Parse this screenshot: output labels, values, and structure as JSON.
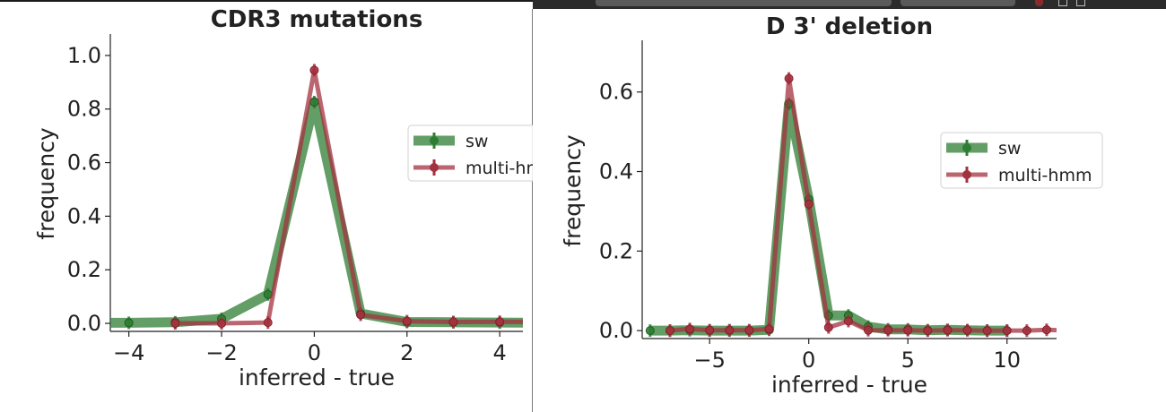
{
  "window": {
    "accent_color": "#8a2a2a"
  },
  "chart_data": [
    {
      "type": "line",
      "title": "CDR3 mutations",
      "xlabel": "inferred - true",
      "ylabel": "frequency",
      "xlim": [
        -4.4,
        4.5
      ],
      "ylim": [
        -0.03,
        1.08
      ],
      "x_ticks": [
        -4,
        -2,
        0,
        2,
        4
      ],
      "x_tick_labels": [
        "−4",
        "−2",
        "0",
        "2",
        "4"
      ],
      "y_ticks": [
        0.0,
        0.2,
        0.4,
        0.6,
        0.8,
        1.0
      ],
      "y_tick_labels": [
        "0.0",
        "0.2",
        "0.4",
        "0.6",
        "0.8",
        "1.0"
      ],
      "grid": false,
      "legend_position": "right",
      "series": [
        {
          "name": "sw",
          "color": "#2e7d32",
          "x": [
            -5,
            -4,
            -3,
            -2,
            -1,
            0,
            1,
            2,
            3,
            4,
            5
          ],
          "values": [
            0.002,
            0.002,
            0.004,
            0.017,
            0.108,
            0.826,
            0.037,
            0.005,
            0.004,
            0.003,
            0.002
          ]
        },
        {
          "name": "multi-hmm",
          "color": "#a3323f",
          "x": [
            -3,
            -2,
            -1,
            0,
            1,
            2,
            3,
            4,
            5
          ],
          "values": [
            0.0,
            0.0,
            0.003,
            0.945,
            0.032,
            0.008,
            0.005,
            0.006,
            0.005
          ]
        }
      ]
    },
    {
      "type": "line",
      "title": "D 3' deletion",
      "xlabel": "inferred - true",
      "ylabel": "frequency",
      "xlim": [
        -8.4,
        12.5
      ],
      "ylim": [
        -0.02,
        0.73
      ],
      "x_ticks": [
        -5,
        0,
        5,
        10
      ],
      "x_tick_labels": [
        "−5",
        "0",
        "5",
        "10"
      ],
      "y_ticks": [
        0.0,
        0.2,
        0.4,
        0.6
      ],
      "y_tick_labels": [
        "0.0",
        "0.2",
        "0.4",
        "0.6"
      ],
      "grid": false,
      "legend_position": "right",
      "series": [
        {
          "name": "sw",
          "color": "#2e7d32",
          "x": [
            -8,
            -7,
            -6,
            -5,
            -4,
            -3,
            -2,
            -1,
            0,
            1,
            2,
            3,
            4,
            5,
            6,
            7,
            8,
            9,
            10
          ],
          "values": [
            0.0,
            0.0,
            0.001,
            0.0,
            0.0,
            0.0,
            0.002,
            0.57,
            0.33,
            0.038,
            0.038,
            0.01,
            0.003,
            0.003,
            0.001,
            0.002,
            0.001,
            0.0,
            0.0
          ]
        },
        {
          "name": "multi-hmm",
          "color": "#a3323f",
          "x": [
            -7,
            -6,
            -5,
            -4,
            -3,
            -2,
            -1,
            0,
            1,
            2,
            3,
            4,
            5,
            6,
            7,
            8,
            9,
            10,
            11,
            12,
            13
          ],
          "values": [
            0.0,
            0.004,
            0.001,
            0.001,
            0.001,
            0.004,
            0.634,
            0.318,
            0.008,
            0.024,
            0.001,
            0.001,
            0.001,
            0.0,
            0.001,
            0.001,
            0.0,
            0.0,
            0.0,
            0.002,
            0.0
          ]
        }
      ]
    }
  ]
}
